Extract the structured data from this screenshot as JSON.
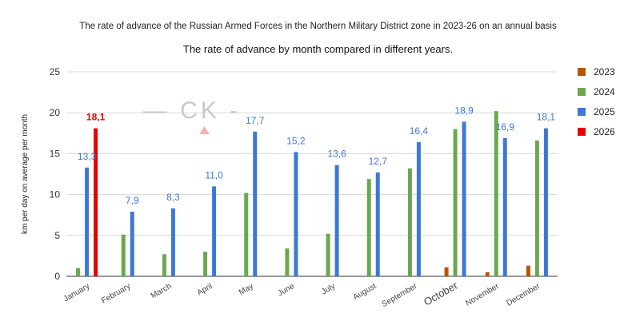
{
  "chart_data": {
    "type": "bar",
    "title": "The rate of advance of the Russian Armed Forces in the Northern Military District zone in 2023-26 on an annual basis",
    "subtitle": "The rate of advance by month compared in different years.",
    "ylabel": "km per day on average per month",
    "xlabel": "",
    "ylim": [
      0,
      25
    ],
    "yticks": [
      0,
      5,
      10,
      15,
      20,
      25
    ],
    "grid": true,
    "legend_position": "right",
    "watermark": "— CK -",
    "categories": [
      "January",
      "February",
      "March",
      "April",
      "May",
      "June",
      "July",
      "August",
      "September",
      "October",
      "November",
      "December"
    ],
    "series": [
      {
        "name": "2023",
        "color": "#b35806",
        "values": [
          null,
          null,
          null,
          null,
          null,
          null,
          null,
          null,
          null,
          1.1,
          0.5,
          1.3
        ]
      },
      {
        "name": "2024",
        "color": "#6aa84f",
        "values": [
          1.0,
          5.1,
          2.7,
          3.0,
          10.2,
          3.4,
          5.2,
          11.9,
          13.2,
          18.0,
          20.2,
          16.6
        ]
      },
      {
        "name": "2025",
        "color": "#3d78d8",
        "values": [
          13.3,
          7.9,
          8.3,
          11.0,
          17.7,
          15.2,
          13.6,
          12.7,
          16.4,
          18.9,
          16.9,
          18.1
        ]
      },
      {
        "name": "2026",
        "color": "#e60000",
        "values": [
          18.1,
          null,
          null,
          null,
          null,
          null,
          null,
          null,
          null,
          null,
          null,
          null
        ]
      }
    ],
    "data_labels": [
      {
        "series": "2025",
        "category": "January",
        "text": "13,3"
      },
      {
        "series": "2026",
        "category": "January",
        "text": "18,1"
      },
      {
        "series": "2025",
        "category": "February",
        "text": "7,9"
      },
      {
        "series": "2025",
        "category": "March",
        "text": "8,3"
      },
      {
        "series": "2025",
        "category": "April",
        "text": "11,0"
      },
      {
        "series": "2025",
        "category": "May",
        "text": "17,7"
      },
      {
        "series": "2025",
        "category": "June",
        "text": "15,2"
      },
      {
        "series": "2025",
        "category": "July",
        "text": "13,6"
      },
      {
        "series": "2025",
        "category": "August",
        "text": "12,7"
      },
      {
        "series": "2025",
        "category": "September",
        "text": "16,4"
      },
      {
        "series": "2025",
        "category": "October",
        "text": "18,9"
      },
      {
        "series": "2025",
        "category": "November",
        "text": "16,9"
      },
      {
        "series": "2025",
        "category": "December",
        "text": "18,1"
      }
    ]
  }
}
